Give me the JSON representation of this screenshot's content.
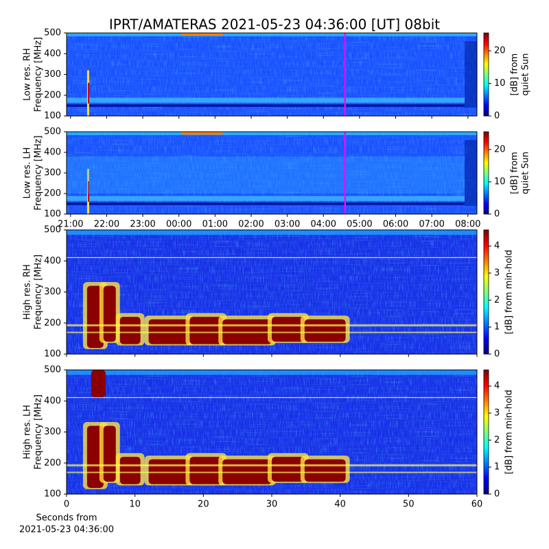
{
  "title": "IPRT/AMATERAS 2021-05-23 04:36:00 [UT]   08bit",
  "chart_data": [
    {
      "type": "heatmap",
      "ylabel": [
        "Low res. RH",
        "Frequency [MHz]"
      ],
      "ylim": [
        100,
        500
      ],
      "yticks": [
        100,
        200,
        300,
        400,
        500
      ],
      "xlim": [
        20.89,
        32.25
      ],
      "xticks": [
        {
          "value": 21,
          "label": "21:00"
        },
        {
          "value": 22,
          "label": "22:00"
        },
        {
          "value": 23,
          "label": "23:00"
        },
        {
          "value": 24,
          "label": "00:00"
        },
        {
          "value": 25,
          "label": "01:00"
        },
        {
          "value": 26,
          "label": "02:00"
        },
        {
          "value": 27,
          "label": "03:00"
        },
        {
          "value": 28,
          "label": "04:00"
        },
        {
          "value": 29,
          "label": "05:00"
        },
        {
          "value": 30,
          "label": "06:00"
        },
        {
          "value": 31,
          "label": "07:00"
        },
        {
          "value": 32,
          "label": "08:00"
        }
      ],
      "show_xticklabels": false,
      "marker_x": 28.6,
      "marker_color": "#ff00ff",
      "colormap": "jet",
      "clim": [
        0,
        25.5
      ],
      "cticks": [
        0,
        10,
        20
      ],
      "clabel": [
        "[dB] from",
        "quiet Sun"
      ]
    },
    {
      "type": "heatmap",
      "ylabel": [
        "Low res. LH",
        "Frequency [MHz]"
      ],
      "ylim": [
        100,
        500
      ],
      "yticks": [
        100,
        200,
        300,
        400,
        500
      ],
      "xlim": [
        20.89,
        32.25
      ],
      "xticks": [
        {
          "value": 21,
          "label": "21:00"
        },
        {
          "value": 22,
          "label": "22:00"
        },
        {
          "value": 23,
          "label": "23:00"
        },
        {
          "value": 24,
          "label": "00:00"
        },
        {
          "value": 25,
          "label": "01:00"
        },
        {
          "value": 26,
          "label": "02:00"
        },
        {
          "value": 27,
          "label": "03:00"
        },
        {
          "value": 28,
          "label": "04:00"
        },
        {
          "value": 29,
          "label": "05:00"
        },
        {
          "value": 30,
          "label": "06:00"
        },
        {
          "value": 31,
          "label": "07:00"
        },
        {
          "value": 32,
          "label": "08:00"
        }
      ],
      "show_xticklabels": true,
      "marker_x": 28.6,
      "marker_color": "#ff00ff",
      "colormap": "jet",
      "clim": [
        0,
        25.5
      ],
      "cticks": [
        0,
        10,
        20
      ],
      "clabel": [
        "[dB] from",
        "quiet Sun"
      ]
    },
    {
      "type": "heatmap",
      "ylabel": [
        "High res. RH",
        "Frequency [MHz]"
      ],
      "ylim": [
        100,
        500
      ],
      "yticks": [
        100,
        200,
        300,
        400,
        500
      ],
      "xlim": [
        0,
        60
      ],
      "xticks": [
        0,
        10,
        20,
        30,
        40,
        50,
        60
      ],
      "show_xticklabels": false,
      "colormap": "jet",
      "clim": [
        0,
        4.6
      ],
      "cticks": [
        0,
        1,
        2,
        3,
        4
      ],
      "clabel": [
        "[dB] from min-hold"
      ]
    },
    {
      "type": "heatmap",
      "ylabel": [
        "High res. LH",
        "Frequency [MHz]"
      ],
      "ylim": [
        100,
        500
      ],
      "yticks": [
        100,
        200,
        300,
        400,
        500
      ],
      "xlim": [
        0,
        60
      ],
      "xticks": [
        0,
        10,
        20,
        30,
        40,
        50,
        60
      ],
      "show_xticklabels": true,
      "xlabel": [
        "Seconds from",
        "2021-05-23 04:36:00"
      ],
      "colormap": "jet",
      "clim": [
        0,
        4.6
      ],
      "cticks": [
        0,
        1,
        2,
        3,
        4
      ],
      "clabel": [
        "[dB] from min-hold"
      ]
    }
  ]
}
